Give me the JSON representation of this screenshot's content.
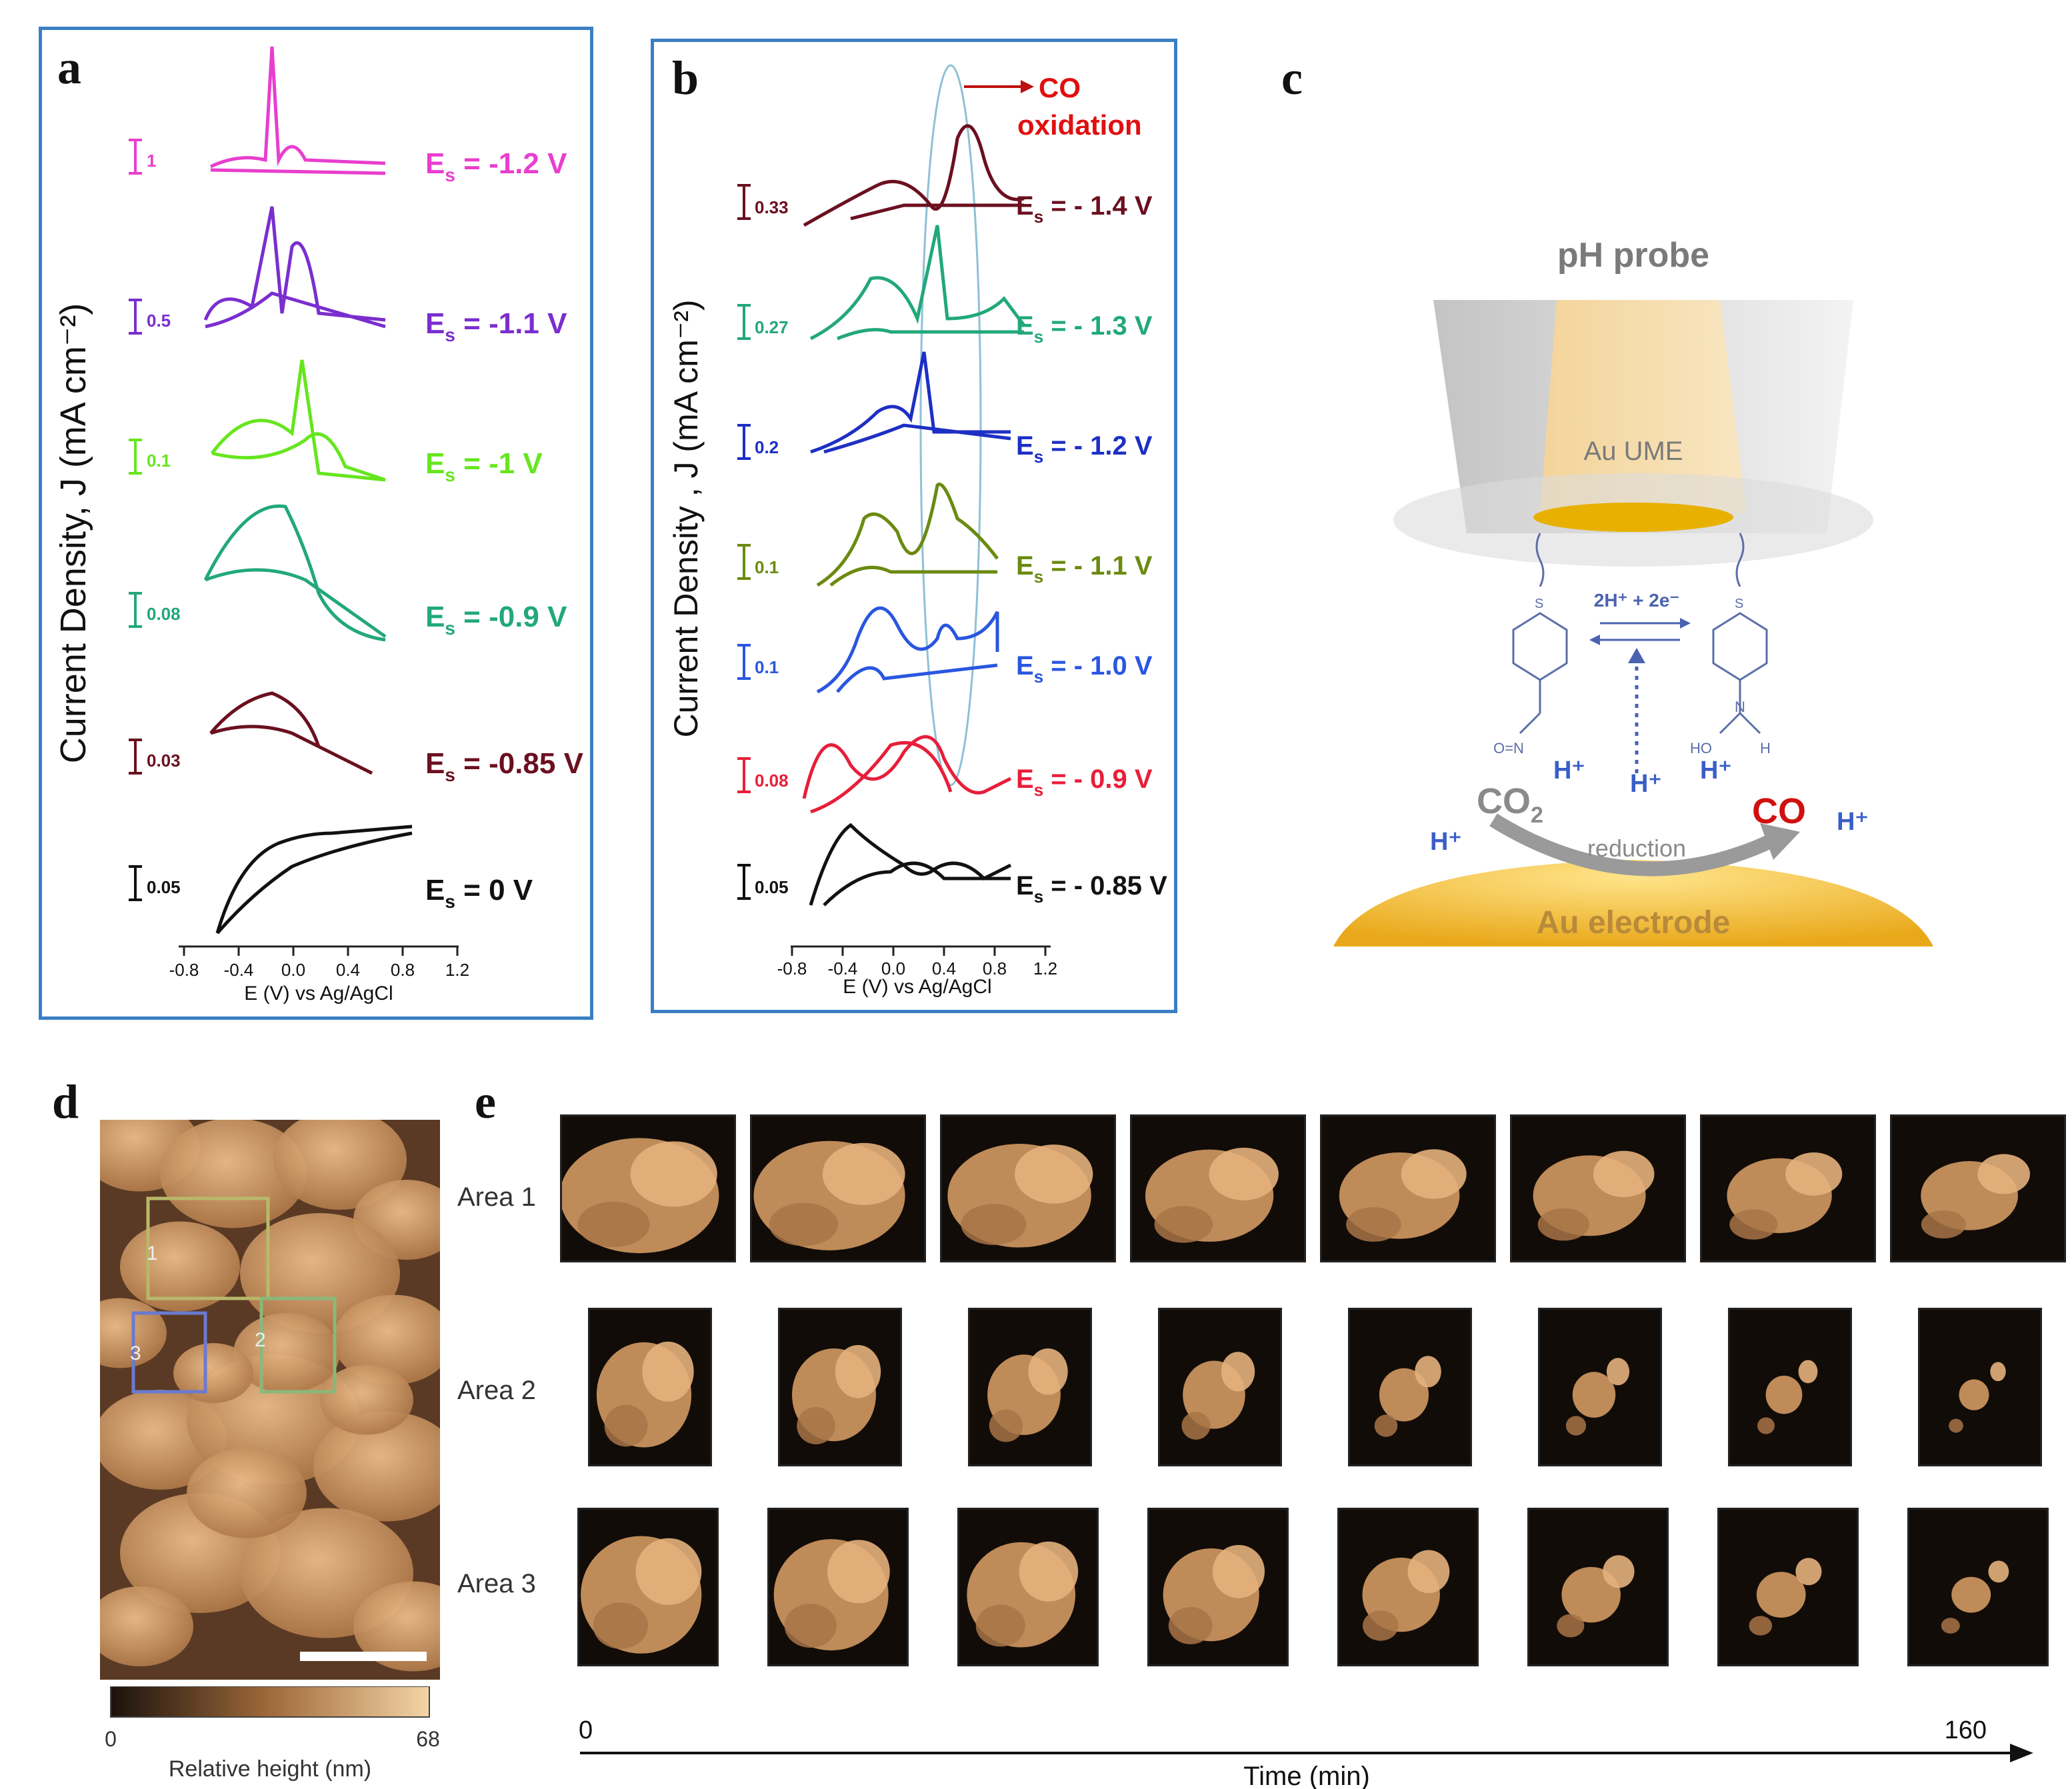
{
  "panels": {
    "a": {
      "letter": "a",
      "ylabel": "Current Density, J (mA cm⁻²)",
      "xlabel": "E (V) vs Ag/AgCl",
      "xticks": [
        "-0.8",
        "-0.4",
        "0.0",
        "0.4",
        "0.8",
        "1.2"
      ],
      "curves": [
        {
          "label": "E",
          "sub": "s",
          "value": " = -1.2 V",
          "scale": "1",
          "color": "#e83ecf"
        },
        {
          "label": "E",
          "sub": "s",
          "value": " = -1.1 V",
          "scale": "0.5",
          "color": "#7a2ecf"
        },
        {
          "label": "E",
          "sub": "s",
          "value": " = -1 V",
          "scale": "0.1",
          "color": "#66e61e"
        },
        {
          "label": "E",
          "sub": "s",
          "value": " = -0.9 V",
          "scale": "0.08",
          "color": "#22a87a"
        },
        {
          "label": "E",
          "sub": "s",
          "value": " = -0.85 V",
          "scale": "0.03",
          "color": "#6b1020"
        },
        {
          "label": "E",
          "sub": "s",
          "value": " = 0 V",
          "scale": "0.05",
          "color": "#111111"
        }
      ]
    },
    "b": {
      "letter": "b",
      "ylabel": "Current Density , J (mA cm⁻²)",
      "xlabel": "E (V) vs Ag/AgCl",
      "xticks": [
        "-0.8",
        "-0.4",
        "0.0",
        "0.4",
        "0.8",
        "1.2"
      ],
      "annotation": "CO\noxidation",
      "annotation_line1": "CO",
      "annotation_line2": "oxidation",
      "curves": [
        {
          "label": "E",
          "sub": "s",
          "value": " = - 1.4 V",
          "scale": "0.33",
          "color": "#6b1020"
        },
        {
          "label": "E",
          "sub": "s",
          "value": " = - 1.3 V",
          "scale": "0.27",
          "color": "#22a87a"
        },
        {
          "label": "E",
          "sub": "s",
          "value": " = - 1.2 V",
          "scale": "0.2",
          "color": "#1d2fc4"
        },
        {
          "label": "E",
          "sub": "s",
          "value": " = - 1.1 V",
          "scale": "0.1",
          "color": "#6b8a10"
        },
        {
          "label": "E",
          "sub": "s",
          "value": " = - 1.0 V",
          "scale": "0.1",
          "color": "#2a56e0"
        },
        {
          "label": "E",
          "sub": "s",
          "value": " = - 0.9 V",
          "scale": "0.08",
          "color": "#e81e3a"
        },
        {
          "label": "E",
          "sub": "s",
          "value": " = - 0.85 V",
          "scale": "0.05",
          "color": "#111111"
        }
      ]
    },
    "c": {
      "letter": "c",
      "title": "pH probe",
      "probe_label": "Au UME",
      "reaction": "2H⁺ + 2e⁻",
      "electrode_label": "Au electrode",
      "reduction_label": "reduction",
      "co2": "CO",
      "co2_sub": "2",
      "co": "CO",
      "proton": "H⁺",
      "left_sub": "S",
      "right_sub": "S",
      "left_group": "O=N",
      "right_group_ho": "HO",
      "right_group_n": "N",
      "right_group_h": "H"
    },
    "d": {
      "letter": "d",
      "box_labels": [
        "1",
        "2",
        "3"
      ],
      "colorbar_min": "0",
      "colorbar_max": "68",
      "colorbar_label": "Relative height (nm)"
    },
    "e": {
      "letter": "e",
      "areas": [
        "Area 1",
        "Area 2",
        "Area 3"
      ],
      "time_start": "0",
      "time_end": "160",
      "time_label": "Time (min)"
    }
  },
  "colors": {
    "frame": "#3a7fc4",
    "afm_light": "#e8b07a",
    "afm_dark": "#1a120c",
    "co_red": "#e01010"
  }
}
